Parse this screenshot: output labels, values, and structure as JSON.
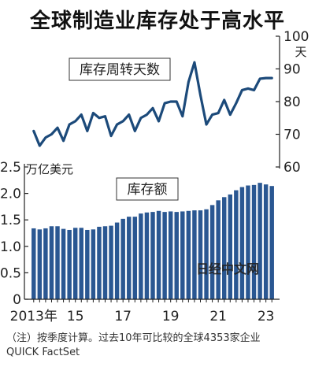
{
  "title": "全球制造业库存处于高水平",
  "chart_data": [
    {
      "type": "line",
      "label": "库存周转天数",
      "ylabel": "天",
      "ylim": [
        60,
        100
      ],
      "yticks": [
        60,
        70,
        80,
        90,
        100
      ],
      "color": "#1c4a7a",
      "x": [
        "2013Q3",
        "2013Q4",
        "2014Q1",
        "2014Q2",
        "2014Q3",
        "2014Q4",
        "2015Q1",
        "2015Q2",
        "2015Q3",
        "2015Q4",
        "2016Q1",
        "2016Q2",
        "2016Q3",
        "2016Q4",
        "2017Q1",
        "2017Q2",
        "2017Q3",
        "2017Q4",
        "2018Q1",
        "2018Q2",
        "2018Q3",
        "2018Q4",
        "2019Q1",
        "2019Q2",
        "2019Q3",
        "2019Q4",
        "2020Q1",
        "2020Q2",
        "2020Q3",
        "2020Q4",
        "2021Q1",
        "2021Q2",
        "2021Q3",
        "2021Q4",
        "2022Q1",
        "2022Q2",
        "2022Q3",
        "2022Q4",
        "2023Q1",
        "2023Q2",
        "2023Q3"
      ],
      "values": [
        71,
        66.5,
        69,
        70,
        72,
        68,
        73,
        74,
        76,
        71,
        76.5,
        75,
        75.5,
        69.5,
        73,
        74,
        76,
        71,
        75,
        76,
        78,
        74,
        79.5,
        80,
        80,
        75.5,
        86,
        92,
        82,
        73,
        76,
        76.5,
        80.5,
        76,
        79.5,
        83.5,
        84,
        83.5,
        87,
        87.2,
        87.2
      ]
    },
    {
      "type": "bar",
      "label": "库存额",
      "ylabel": "万亿美元",
      "ylim": [
        0,
        2.5
      ],
      "yticks": [
        0,
        0.5,
        1.0,
        1.5,
        2.0,
        2.5
      ],
      "ytick_labels": [
        "0",
        "0.5",
        "1.0",
        "1.5",
        "2.0",
        "2.5"
      ],
      "color": "#2a5792",
      "x": [
        "2013Q3",
        "2013Q4",
        "2014Q1",
        "2014Q2",
        "2014Q3",
        "2014Q4",
        "2015Q1",
        "2015Q2",
        "2015Q3",
        "2015Q4",
        "2016Q1",
        "2016Q2",
        "2016Q3",
        "2016Q4",
        "2017Q1",
        "2017Q2",
        "2017Q3",
        "2017Q4",
        "2018Q1",
        "2018Q2",
        "2018Q3",
        "2018Q4",
        "2019Q1",
        "2019Q2",
        "2019Q3",
        "2019Q4",
        "2020Q1",
        "2020Q2",
        "2020Q3",
        "2020Q4",
        "2021Q1",
        "2021Q2",
        "2021Q3",
        "2021Q4",
        "2022Q1",
        "2022Q2",
        "2022Q3",
        "2022Q4",
        "2023Q1",
        "2023Q2",
        "2023Q3"
      ],
      "values": [
        1.34,
        1.32,
        1.34,
        1.38,
        1.38,
        1.33,
        1.31,
        1.35,
        1.35,
        1.31,
        1.32,
        1.37,
        1.38,
        1.39,
        1.45,
        1.52,
        1.56,
        1.56,
        1.62,
        1.64,
        1.65,
        1.67,
        1.65,
        1.66,
        1.65,
        1.66,
        1.67,
        1.68,
        1.68,
        1.7,
        1.78,
        1.87,
        1.93,
        1.98,
        2.06,
        2.12,
        2.15,
        2.16,
        2.2,
        2.17,
        2.14
      ]
    }
  ],
  "x_axis": {
    "ticks": [
      {
        "label": "2013年",
        "index": 0
      },
      {
        "label": "15",
        "index": 7
      },
      {
        "label": "17",
        "index": 15
      },
      {
        "label": "19",
        "index": 23
      },
      {
        "label": "21",
        "index": 31
      },
      {
        "label": "23",
        "index": 39
      }
    ]
  },
  "watermark": "日经中文网",
  "notes": [
    "（注）按季度计算。过去10年可比较的全球4353家企业",
    "QUICK FactSet"
  ]
}
